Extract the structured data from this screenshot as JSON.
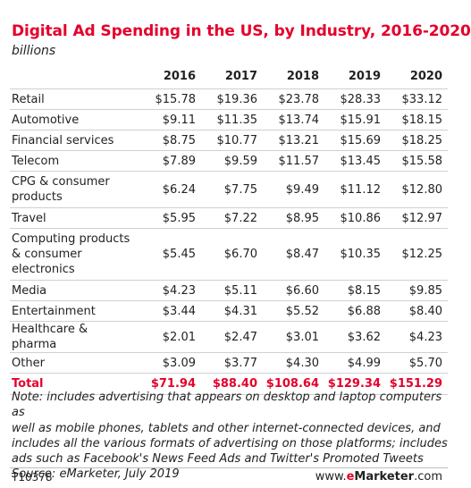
{
  "header": {
    "title": "Digital Ad Spending in the US, by Industry, 2016-2020",
    "subtitle": "billions"
  },
  "footer": {
    "note_line1": "Note: includes advertising that appears on desktop and laptop computers as",
    "note_line2": "well as mobile phones, tablets and other internet-connected devices, and",
    "note_line3": "includes all the various formats of advertising on those platforms; includes",
    "note_line4": "ads such as Facebook's News Feed Ads and Twitter's Promoted Tweets",
    "source": "Source: eMarketer, July 2019",
    "chart_id": "T10378",
    "brand_prefix": "www.",
    "brand_e": "e",
    "brand_name": "Marketer",
    "brand_suffix": ".com"
  },
  "colors": {
    "accent": "#e4002b",
    "text": "#222222",
    "rule": "#d0d0d0"
  },
  "chart_data": {
    "type": "table",
    "title": "Digital Ad Spending in the US, by Industry, 2016-2020",
    "subtitle": "billions",
    "columns": [
      "2016",
      "2017",
      "2018",
      "2019",
      "2020"
    ],
    "rows": [
      {
        "label": "Retail",
        "values": [
          "$15.78",
          "$19.36",
          "$23.78",
          "$28.33",
          "$33.12"
        ]
      },
      {
        "label": "Automotive",
        "values": [
          "$9.11",
          "$11.35",
          "$13.74",
          "$15.91",
          "$18.15"
        ]
      },
      {
        "label": "Financial services",
        "values": [
          "$8.75",
          "$10.77",
          "$13.21",
          "$15.69",
          "$18.25"
        ]
      },
      {
        "label": "Telecom",
        "values": [
          "$7.89",
          "$9.59",
          "$11.57",
          "$13.45",
          "$15.58"
        ]
      },
      {
        "label": "CPG & consumer products",
        "label_lines": [
          "CPG & consumer",
          "products"
        ],
        "values": [
          "$6.24",
          "$7.75",
          "$9.49",
          "$11.12",
          "$12.80"
        ]
      },
      {
        "label": "Travel",
        "values": [
          "$5.95",
          "$7.22",
          "$8.95",
          "$10.86",
          "$12.97"
        ]
      },
      {
        "label": "Computing products & consumer electronics",
        "label_lines": [
          "Computing products",
          "& consumer",
          "electronics"
        ],
        "values": [
          "$5.45",
          "$6.70",
          "$8.47",
          "$10.35",
          "$12.25"
        ]
      },
      {
        "label": "Media",
        "values": [
          "$4.23",
          "$5.11",
          "$6.60",
          "$8.15",
          "$9.85"
        ]
      },
      {
        "label": "Entertainment",
        "values": [
          "$3.44",
          "$4.31",
          "$5.52",
          "$6.88",
          "$8.40"
        ]
      },
      {
        "label": "Healthcare & pharma",
        "values": [
          "$2.01",
          "$2.47",
          "$3.01",
          "$3.62",
          "$4.23"
        ]
      },
      {
        "label": "Other",
        "values": [
          "$3.09",
          "$3.77",
          "$4.30",
          "$4.99",
          "$5.70"
        ]
      }
    ],
    "total": {
      "label": "Total",
      "values": [
        "$71.94",
        "$88.40",
        "$108.64",
        "$129.34",
        "$151.29"
      ]
    }
  }
}
